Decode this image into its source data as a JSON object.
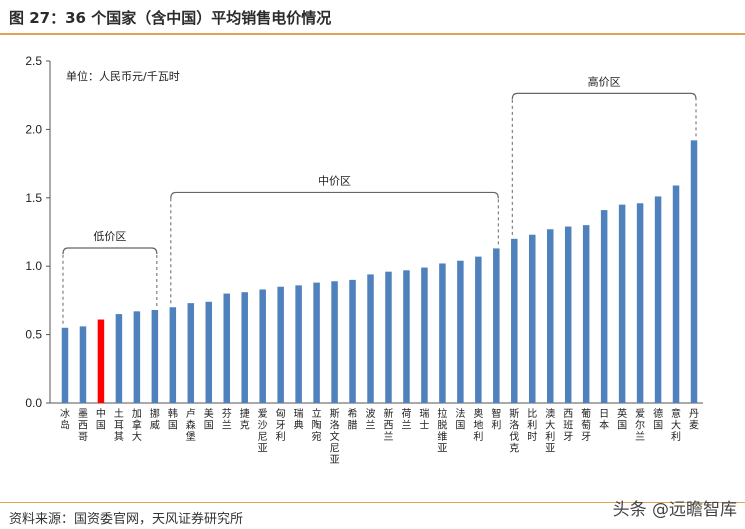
{
  "header": {
    "title": "图 27：36 个国家（含中国）平均销售电价情况"
  },
  "footer": {
    "source": "资料来源：国资委官网，天风证券研究所",
    "watermark": "头条 @远瞻智库"
  },
  "chart_data": {
    "type": "bar",
    "unit_label": "单位：人民币元/千瓦时",
    "categories": [
      "冰岛",
      "墨西哥",
      "中国",
      "土耳其",
      "加拿大",
      "挪威",
      "韩国",
      "卢森堡",
      "美国",
      "芬兰",
      "捷克",
      "爱沙尼亚",
      "匈牙利",
      "瑞典",
      "立陶宛",
      "斯洛文尼亚",
      "希腊",
      "波兰",
      "新西兰",
      "荷兰",
      "瑞士",
      "拉脱维亚",
      "法国",
      "奥地利",
      "智利",
      "斯洛伐克",
      "比利时",
      "澳大利亚",
      "西班牙",
      "葡萄牙",
      "日本",
      "英国",
      "爱尔兰",
      "德国",
      "意大利",
      "丹麦"
    ],
    "values": [
      0.55,
      0.56,
      0.61,
      0.65,
      0.67,
      0.68,
      0.7,
      0.73,
      0.74,
      0.8,
      0.81,
      0.83,
      0.85,
      0.86,
      0.88,
      0.89,
      0.9,
      0.94,
      0.96,
      0.97,
      0.99,
      1.02,
      1.04,
      1.07,
      1.13,
      1.2,
      1.23,
      1.27,
      1.29,
      1.3,
      1.41,
      1.45,
      1.46,
      1.51,
      1.59,
      1.92
    ],
    "highlight": {
      "category": "中国",
      "color": "#ff0000"
    },
    "bar_color": "#4f81bd",
    "ylim": [
      0,
      2.5
    ],
    "yticks": [
      "0.0",
      "0.5",
      "1.0",
      "1.5",
      "2.0",
      "2.5"
    ],
    "grid": false,
    "annotations": [
      {
        "label": "低价区",
        "from": 0,
        "to": 5
      },
      {
        "label": "中价区",
        "from": 6,
        "to": 24
      },
      {
        "label": "高价区",
        "from": 25,
        "to": 35
      }
    ]
  }
}
